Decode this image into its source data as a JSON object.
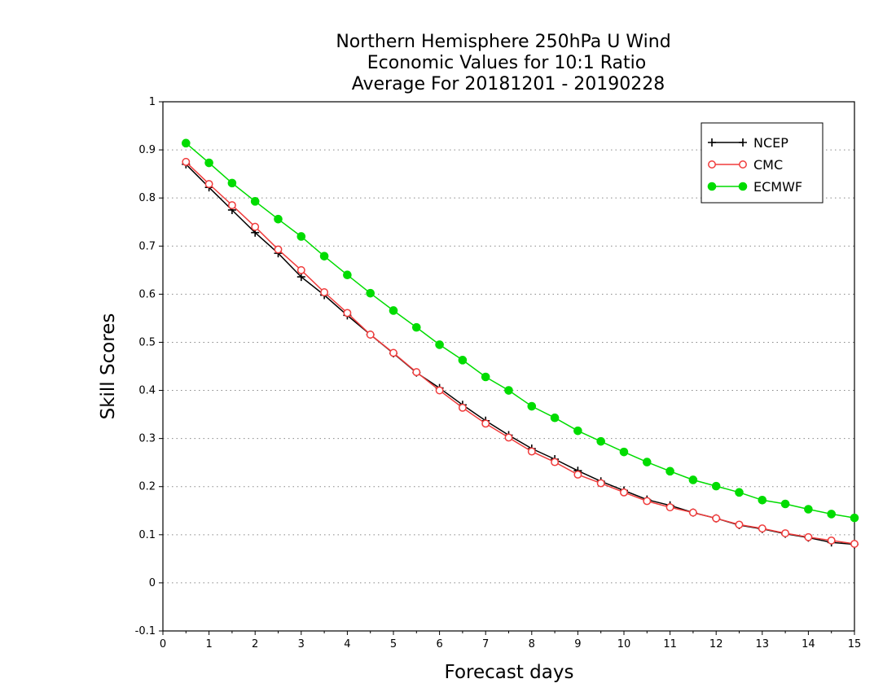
{
  "chart_data": {
    "type": "line",
    "title": "Northern Hemisphere 250hPa U Wind",
    "subtitle_lines": [
      "Economic Values for 10:1 Ratio",
      "Average For 20181201 - 20190228"
    ],
    "xlabel": "Forecast days",
    "ylabel": "Skill Scores",
    "xlim": [
      0,
      15
    ],
    "ylim": [
      -0.1,
      1
    ],
    "xticks": [
      0,
      1,
      2,
      3,
      4,
      5,
      6,
      7,
      8,
      9,
      10,
      11,
      12,
      13,
      14,
      15
    ],
    "yticks": [
      -0.1,
      0,
      0.1,
      0.2,
      0.3,
      0.4,
      0.5,
      0.6,
      0.7,
      0.8,
      0.9,
      1
    ],
    "ytick_labels": [
      "-0.1",
      "0",
      "0.1",
      "0.2",
      "0.3",
      "0.4",
      "0.5",
      "0.6",
      "0.7",
      "0.8",
      "0.9",
      "1"
    ],
    "grid": "horizontal dotted",
    "legend_position": "top-right",
    "x": [
      0.5,
      1,
      1.5,
      2,
      2.5,
      3,
      3.5,
      4,
      4.5,
      5,
      5.5,
      6,
      6.5,
      7,
      7.5,
      8,
      8.5,
      9,
      9.5,
      10,
      10.5,
      11,
      11.5,
      12,
      12.5,
      13,
      13.5,
      14,
      14.5,
      15
    ],
    "series": [
      {
        "name": "NCEP",
        "color": "#000000",
        "marker": "plus",
        "values": [
          0.87,
          0.822,
          0.775,
          0.728,
          0.685,
          0.636,
          0.598,
          0.556,
          0.516,
          0.477,
          0.437,
          0.405,
          0.37,
          0.337,
          0.307,
          0.279,
          0.257,
          0.233,
          0.211,
          0.192,
          0.173,
          0.161,
          0.146,
          0.134,
          0.12,
          0.112,
          0.102,
          0.094,
          0.084,
          0.08
        ]
      },
      {
        "name": "CMC",
        "color": "#f03c3c",
        "marker": "open-circle",
        "values": [
          0.875,
          0.829,
          0.785,
          0.74,
          0.693,
          0.65,
          0.604,
          0.561,
          0.516,
          0.478,
          0.438,
          0.4,
          0.364,
          0.331,
          0.302,
          0.273,
          0.251,
          0.225,
          0.207,
          0.188,
          0.17,
          0.157,
          0.146,
          0.134,
          0.121,
          0.113,
          0.103,
          0.095,
          0.088,
          0.081
        ]
      },
      {
        "name": "ECMWF",
        "color": "#00dc00",
        "marker": "filled-circle",
        "values": [
          0.914,
          0.873,
          0.831,
          0.793,
          0.756,
          0.72,
          0.679,
          0.64,
          0.602,
          0.566,
          0.531,
          0.495,
          0.463,
          0.428,
          0.4,
          0.367,
          0.343,
          0.316,
          0.294,
          0.272,
          0.251,
          0.232,
          0.214,
          0.201,
          0.188,
          0.172,
          0.164,
          0.153,
          0.143,
          0.135
        ]
      }
    ]
  }
}
